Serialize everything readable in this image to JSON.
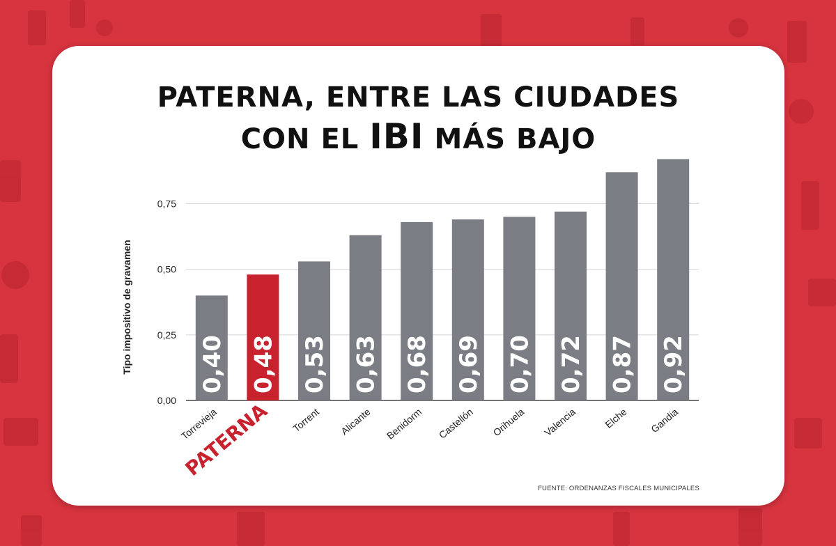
{
  "header": {
    "title_line1": "PATERNA, ENTRE LAS CIUDADES",
    "title_line2_pre": "CON EL",
    "title_line2_bold": "IBI",
    "title_line2_post": "MÁS BAJO"
  },
  "footer": {
    "source": "FUENTE: ORDENANZAS FISCALES MUNICIPALES"
  },
  "chart_data": {
    "type": "bar",
    "ylabel": "Tipo impositivo de gravamen",
    "xlabel": "",
    "ylim": [
      0,
      0.9
    ],
    "yticks": [
      0,
      0.25,
      0.5,
      0.75
    ],
    "ytick_labels": [
      "0,00",
      "0,25",
      "0,50",
      "0,75"
    ],
    "grid": true,
    "categories": [
      "Torrevieja",
      "PATERNA",
      "Torrent",
      "Alicante",
      "Benidorm",
      "Castellón",
      "Orihuela",
      "Valencia",
      "Elche",
      "Gandia"
    ],
    "values": [
      0.4,
      0.48,
      0.53,
      0.63,
      0.68,
      0.69,
      0.7,
      0.72,
      0.87,
      0.92
    ],
    "value_labels": [
      "0,40",
      "0,48",
      "0,53",
      "0,63",
      "0,68",
      "0,69",
      "0,70",
      "0,72",
      "0,87",
      "0,92"
    ],
    "highlight_index": 1,
    "colors": {
      "bar": "#7a7e84",
      "highlight": "#c8222f",
      "grid": "#d4d4d4",
      "axis": "#222222"
    }
  },
  "theme": {
    "background": "#d8343f",
    "card": "#ffffff"
  }
}
